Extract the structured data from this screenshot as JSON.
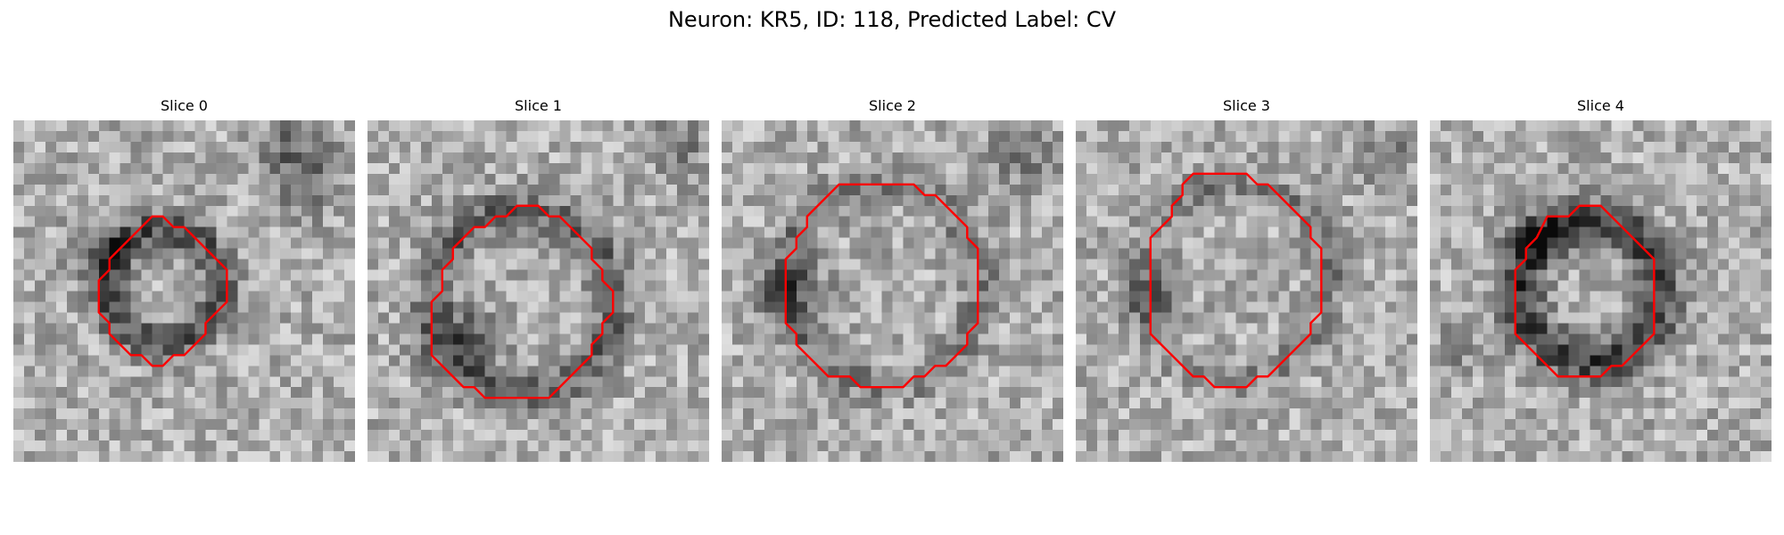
{
  "figure": {
    "title": "Neuron: KR5, ID: 118, Predicted Label: CV"
  },
  "image": {
    "grid_size": 32,
    "colormap": "gray",
    "contour_color": "#ff0000"
  },
  "slices": [
    {
      "label": "Slice 0",
      "contour": [
        [
          13,
          9
        ],
        [
          14,
          9
        ],
        [
          15,
          10
        ],
        [
          16,
          10
        ],
        [
          17,
          11
        ],
        [
          18,
          12
        ],
        [
          19,
          13
        ],
        [
          20,
          14
        ],
        [
          20,
          15
        ],
        [
          20,
          16
        ],
        [
          20,
          17
        ],
        [
          19,
          18
        ],
        [
          18,
          19
        ],
        [
          18,
          20
        ],
        [
          17,
          21
        ],
        [
          16,
          22
        ],
        [
          15,
          22
        ],
        [
          14,
          23
        ],
        [
          13,
          23
        ],
        [
          12,
          22
        ],
        [
          11,
          22
        ],
        [
          10,
          21
        ],
        [
          9,
          20
        ],
        [
          9,
          19
        ],
        [
          8,
          18
        ],
        [
          8,
          17
        ],
        [
          8,
          16
        ],
        [
          8,
          15
        ],
        [
          9,
          14
        ],
        [
          9,
          13
        ],
        [
          10,
          12
        ],
        [
          11,
          11
        ],
        [
          12,
          10
        ]
      ]
    },
    {
      "label": "Slice 1",
      "contour": [
        [
          14,
          8
        ],
        [
          15,
          8
        ],
        [
          16,
          8
        ],
        [
          17,
          9
        ],
        [
          18,
          9
        ],
        [
          19,
          10
        ],
        [
          20,
          11
        ],
        [
          21,
          12
        ],
        [
          21,
          13
        ],
        [
          22,
          14
        ],
        [
          22,
          15
        ],
        [
          23,
          16
        ],
        [
          23,
          17
        ],
        [
          23,
          18
        ],
        [
          22,
          19
        ],
        [
          22,
          20
        ],
        [
          21,
          21
        ],
        [
          21,
          22
        ],
        [
          20,
          23
        ],
        [
          19,
          24
        ],
        [
          18,
          25
        ],
        [
          17,
          26
        ],
        [
          16,
          26
        ],
        [
          15,
          26
        ],
        [
          14,
          26
        ],
        [
          13,
          26
        ],
        [
          12,
          26
        ],
        [
          11,
          26
        ],
        [
          10,
          25
        ],
        [
          9,
          25
        ],
        [
          8,
          24
        ],
        [
          7,
          23
        ],
        [
          6,
          22
        ],
        [
          6,
          21
        ],
        [
          6,
          20
        ],
        [
          6,
          19
        ],
        [
          6,
          18
        ],
        [
          6,
          17
        ],
        [
          7,
          16
        ],
        [
          7,
          15
        ],
        [
          7,
          14
        ],
        [
          8,
          13
        ],
        [
          8,
          12
        ],
        [
          9,
          11
        ],
        [
          10,
          10
        ],
        [
          11,
          10
        ],
        [
          12,
          9
        ],
        [
          13,
          9
        ]
      ]
    },
    {
      "label": "Slice 2",
      "contour": [
        [
          11,
          6
        ],
        [
          12,
          6
        ],
        [
          13,
          6
        ],
        [
          14,
          6
        ],
        [
          15,
          6
        ],
        [
          16,
          6
        ],
        [
          17,
          6
        ],
        [
          18,
          6
        ],
        [
          19,
          7
        ],
        [
          20,
          7
        ],
        [
          21,
          8
        ],
        [
          22,
          9
        ],
        [
          23,
          10
        ],
        [
          23,
          11
        ],
        [
          24,
          12
        ],
        [
          24,
          13
        ],
        [
          24,
          14
        ],
        [
          24,
          15
        ],
        [
          24,
          16
        ],
        [
          24,
          17
        ],
        [
          24,
          18
        ],
        [
          24,
          19
        ],
        [
          23,
          20
        ],
        [
          23,
          21
        ],
        [
          22,
          22
        ],
        [
          21,
          23
        ],
        [
          20,
          23
        ],
        [
          19,
          24
        ],
        [
          18,
          24
        ],
        [
          17,
          25
        ],
        [
          16,
          25
        ],
        [
          15,
          25
        ],
        [
          14,
          25
        ],
        [
          13,
          25
        ],
        [
          12,
          24
        ],
        [
          11,
          24
        ],
        [
          10,
          24
        ],
        [
          9,
          23
        ],
        [
          8,
          22
        ],
        [
          7,
          21
        ],
        [
          7,
          20
        ],
        [
          6,
          19
        ],
        [
          6,
          18
        ],
        [
          6,
          17
        ],
        [
          6,
          16
        ],
        [
          6,
          15
        ],
        [
          6,
          14
        ],
        [
          6,
          13
        ],
        [
          7,
          12
        ],
        [
          7,
          11
        ],
        [
          8,
          10
        ],
        [
          8,
          9
        ],
        [
          9,
          8
        ],
        [
          10,
          7
        ]
      ]
    },
    {
      "label": "Slice 3",
      "contour": [
        [
          11,
          5
        ],
        [
          12,
          5
        ],
        [
          13,
          5
        ],
        [
          14,
          5
        ],
        [
          15,
          5
        ],
        [
          16,
          5
        ],
        [
          17,
          6
        ],
        [
          18,
          6
        ],
        [
          19,
          7
        ],
        [
          20,
          8
        ],
        [
          21,
          9
        ],
        [
          22,
          10
        ],
        [
          22,
          11
        ],
        [
          23,
          12
        ],
        [
          23,
          13
        ],
        [
          23,
          14
        ],
        [
          23,
          15
        ],
        [
          23,
          16
        ],
        [
          23,
          17
        ],
        [
          23,
          18
        ],
        [
          22,
          19
        ],
        [
          22,
          20
        ],
        [
          21,
          21
        ],
        [
          20,
          22
        ],
        [
          19,
          23
        ],
        [
          18,
          24
        ],
        [
          17,
          24
        ],
        [
          16,
          25
        ],
        [
          15,
          25
        ],
        [
          14,
          25
        ],
        [
          13,
          25
        ],
        [
          12,
          24
        ],
        [
          11,
          24
        ],
        [
          10,
          23
        ],
        [
          9,
          22
        ],
        [
          8,
          21
        ],
        [
          7,
          20
        ],
        [
          7,
          19
        ],
        [
          7,
          18
        ],
        [
          7,
          17
        ],
        [
          7,
          16
        ],
        [
          7,
          15
        ],
        [
          7,
          14
        ],
        [
          7,
          13
        ],
        [
          7,
          12
        ],
        [
          7,
          11
        ],
        [
          8,
          10
        ],
        [
          9,
          9
        ],
        [
          9,
          8
        ],
        [
          10,
          7
        ],
        [
          10,
          6
        ]
      ]
    },
    {
      "label": "Slice 4",
      "contour": [
        [
          14,
          8
        ],
        [
          15,
          8
        ],
        [
          16,
          8
        ],
        [
          17,
          9
        ],
        [
          18,
          10
        ],
        [
          19,
          11
        ],
        [
          20,
          12
        ],
        [
          21,
          13
        ],
        [
          21,
          14
        ],
        [
          21,
          15
        ],
        [
          21,
          16
        ],
        [
          21,
          17
        ],
        [
          21,
          18
        ],
        [
          21,
          19
        ],
        [
          21,
          20
        ],
        [
          20,
          21
        ],
        [
          19,
          22
        ],
        [
          18,
          23
        ],
        [
          17,
          23
        ],
        [
          16,
          24
        ],
        [
          15,
          24
        ],
        [
          14,
          24
        ],
        [
          13,
          24
        ],
        [
          12,
          24
        ],
        [
          11,
          23
        ],
        [
          10,
          22
        ],
        [
          9,
          21
        ],
        [
          8,
          20
        ],
        [
          8,
          19
        ],
        [
          8,
          18
        ],
        [
          8,
          17
        ],
        [
          8,
          16
        ],
        [
          8,
          15
        ],
        [
          8,
          14
        ],
        [
          9,
          13
        ],
        [
          9,
          12
        ],
        [
          10,
          11
        ],
        [
          11,
          9
        ],
        [
          12,
          9
        ],
        [
          13,
          9
        ]
      ]
    }
  ]
}
